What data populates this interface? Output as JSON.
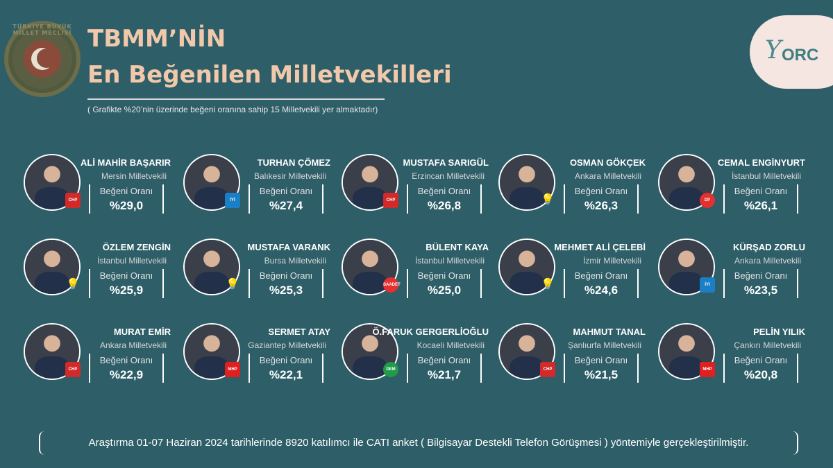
{
  "header": {
    "title_line1": "TBMM’NİN",
    "title_line2": "En Beğenilen Milletvekilleri",
    "subtitle": "( Grafikte %20’nin üzerinde beğeni oranına sahip 15 Milletvekili yer almaktadır)",
    "seal_text": "TÜRKİYE BÜYÜK MİLLET MECLİSİ"
  },
  "logo": {
    "text": "ORC",
    "icon": "orc-logo-icon"
  },
  "rating_label": "Beğeni Oranı",
  "deputies": [
    {
      "name": "ALİ MAHİR BAŞARIR",
      "role": "Mersin Milletvekili",
      "value": "%29,0",
      "party": "CHP"
    },
    {
      "name": "TURHAN ÇÖMEZ",
      "role": "Balıkesir Milletvekili",
      "value": "%27,4",
      "party": "İYİ"
    },
    {
      "name": "MUSTAFA SARIGÜL",
      "role": "Erzincan Milletvekili",
      "value": "%26,8",
      "party": "CHP"
    },
    {
      "name": "OSMAN GÖKÇEK",
      "role": "Ankara Milletvekili",
      "value": "%26,3",
      "party": "AK"
    },
    {
      "name": "CEMAL ENGİNYURT",
      "role": "İstanbul Milletvekili",
      "value": "%26,1",
      "party": "DP"
    },
    {
      "name": "ÖZLEM ZENGİN",
      "role": "İstanbul Milletvekili",
      "value": "%25,9",
      "party": "AK"
    },
    {
      "name": "MUSTAFA VARANK",
      "role": "Bursa Milletvekili",
      "value": "%25,3",
      "party": "AK"
    },
    {
      "name": "BÜLENT KAYA",
      "role": "İstanbul  Milletvekili",
      "value": "%25,0",
      "party": "SAADET"
    },
    {
      "name": "MEHMET ALİ ÇELEBİ",
      "role": "İzmir Milletvekili",
      "value": "%24,6",
      "party": "AK"
    },
    {
      "name": "KÜRŞAD ZORLU",
      "role": "Ankara Milletvekili",
      "value": "%23,5",
      "party": "İYİ"
    },
    {
      "name": "MURAT EMİR",
      "role": "Ankara Milletvekili",
      "value": "%22,9",
      "party": "CHP"
    },
    {
      "name": "SERMET ATAY",
      "role": "Gaziantep Milletvekili",
      "value": "%22,1",
      "party": "MHP"
    },
    {
      "name": "Ö.FARUK GERGERLİOĞLU",
      "role": "Kocaeli Milletvekili",
      "value": "%21,7",
      "party": "DEM"
    },
    {
      "name": "MAHMUT TANAL",
      "role": "Şanlıurfa Milletvekili",
      "value": "%21,5",
      "party": "CHP"
    },
    {
      "name": "PELİN YILIK",
      "role": "Çankırı Milletvekili",
      "value": "%20,8",
      "party": "MHP"
    }
  ],
  "footer": {
    "text": "Araştırma 01-07 Haziran 2024 tarihlerinde 8920 katılımcı ile CATI anket ( Bilgisayar Destekli Telefon Görüşmesi ) yöntemiyle gerçekleştirilmiştir."
  }
}
